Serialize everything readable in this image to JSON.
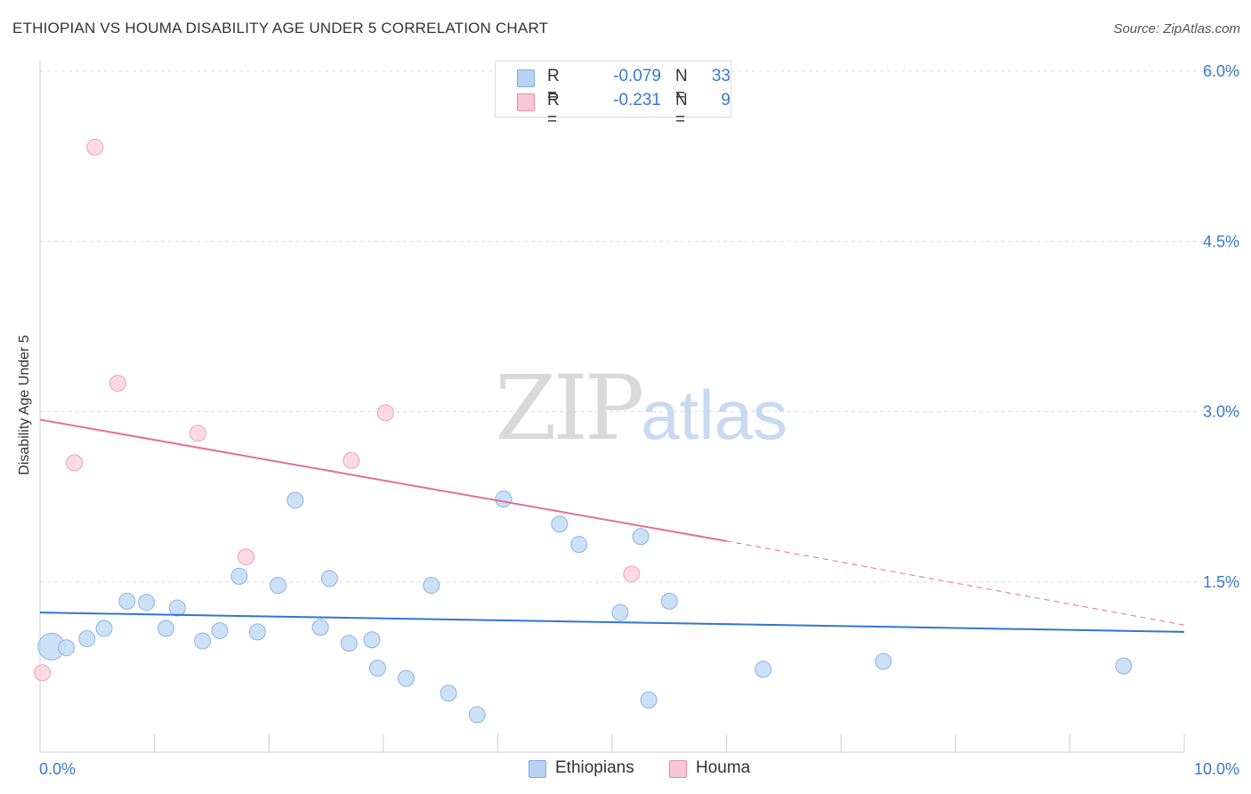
{
  "header": {
    "title": "ETHIOPIAN VS HOUMA DISABILITY AGE UNDER 5 CORRELATION CHART",
    "source": "Source: ZipAtlas.com"
  },
  "watermark": {
    "zip": "ZIP",
    "atlas": "atlas"
  },
  "legend": {
    "rows": [
      {
        "r_label": "R =",
        "r_value": "-0.079",
        "n_label": "N =",
        "n_value": "33",
        "color": "#b8d3f2",
        "border": "#7ea9de"
      },
      {
        "r_label": "R =",
        "r_value": "-0.231",
        "n_label": "N =",
        "n_value": "9",
        "color": "#f8c7d5",
        "border": "#e88aa6"
      }
    ]
  },
  "colors": {
    "ethiopians_fill": "#c3daf5",
    "ethiopians_stroke": "#8cb4e4",
    "ethiopians_line": "#2f76d2",
    "houma_fill": "#fad3de",
    "houma_stroke": "#eda3ba",
    "houma_line": "#e36e97",
    "tick_label": "#3a78d0",
    "grid": "#dddddd"
  },
  "chart_data": {
    "type": "scatter",
    "title": "ETHIOPIAN VS HOUMA DISABILITY AGE UNDER 5 CORRELATION CHART",
    "xlabel": "",
    "ylabel": "Disability Age Under 5",
    "xlim": [
      0.0,
      10.0
    ],
    "ylim": [
      0.0,
      6.0
    ],
    "x_tick_labels": [
      "0.0%",
      "10.0%"
    ],
    "y_ticks": [
      1.5,
      3.0,
      4.5,
      6.0
    ],
    "y_tick_labels": [
      "1.5%",
      "3.0%",
      "4.5%",
      "6.0%"
    ],
    "grid": true,
    "legend_position": "bottom-center",
    "series": [
      {
        "name": "Ethiopians",
        "points": [
          {
            "x": 0.1,
            "y": 0.93,
            "size": "large"
          },
          {
            "x": 0.23,
            "y": 0.92
          },
          {
            "x": 0.41,
            "y": 1.0
          },
          {
            "x": 0.56,
            "y": 1.09
          },
          {
            "x": 0.76,
            "y": 1.33
          },
          {
            "x": 0.93,
            "y": 1.32
          },
          {
            "x": 1.1,
            "y": 1.09
          },
          {
            "x": 1.2,
            "y": 1.27
          },
          {
            "x": 1.42,
            "y": 0.98
          },
          {
            "x": 1.57,
            "y": 1.07
          },
          {
            "x": 1.74,
            "y": 1.55
          },
          {
            "x": 1.9,
            "y": 1.06
          },
          {
            "x": 2.08,
            "y": 1.47
          },
          {
            "x": 2.23,
            "y": 2.22
          },
          {
            "x": 2.45,
            "y": 1.1
          },
          {
            "x": 2.53,
            "y": 1.53
          },
          {
            "x": 2.7,
            "y": 0.96
          },
          {
            "x": 2.9,
            "y": 0.99
          },
          {
            "x": 2.95,
            "y": 0.74
          },
          {
            "x": 3.2,
            "y": 0.65
          },
          {
            "x": 3.42,
            "y": 1.47
          },
          {
            "x": 3.57,
            "y": 0.52
          },
          {
            "x": 3.82,
            "y": 0.33
          },
          {
            "x": 4.05,
            "y": 2.23
          },
          {
            "x": 4.54,
            "y": 2.01
          },
          {
            "x": 4.71,
            "y": 1.83
          },
          {
            "x": 5.07,
            "y": 1.23
          },
          {
            "x": 5.25,
            "y": 1.9
          },
          {
            "x": 5.32,
            "y": 0.46
          },
          {
            "x": 5.5,
            "y": 1.33
          },
          {
            "x": 6.32,
            "y": 0.73
          },
          {
            "x": 7.37,
            "y": 0.8
          },
          {
            "x": 9.47,
            "y": 0.76
          }
        ],
        "trend": {
          "x0": 0.0,
          "y0": 1.23,
          "x1": 10.0,
          "y1": 1.06
        }
      },
      {
        "name": "Houma",
        "points": [
          {
            "x": 0.02,
            "y": 0.7
          },
          {
            "x": 0.3,
            "y": 2.55
          },
          {
            "x": 0.48,
            "y": 5.33
          },
          {
            "x": 0.68,
            "y": 3.25
          },
          {
            "x": 1.38,
            "y": 2.81
          },
          {
            "x": 1.8,
            "y": 1.72
          },
          {
            "x": 2.72,
            "y": 2.57
          },
          {
            "x": 3.02,
            "y": 2.99
          },
          {
            "x": 5.17,
            "y": 1.57
          }
        ],
        "trend": {
          "x0": 0.0,
          "y0": 2.93,
          "x1": 6.0,
          "y1": 1.86,
          "dashed_to_x": 10.0,
          "dashed_to_y": 1.12
        }
      }
    ]
  }
}
